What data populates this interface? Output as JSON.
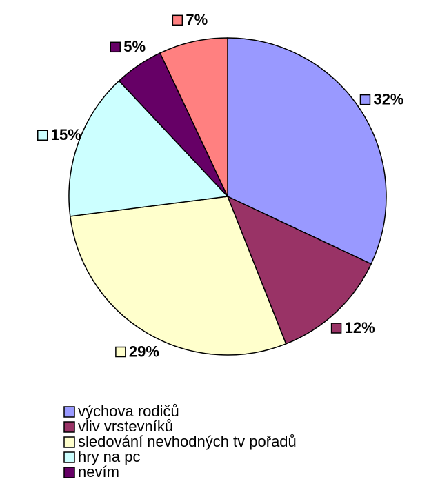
{
  "chart_data": {
    "type": "pie",
    "categories": [
      "výchova rodičů",
      "vliv vrstevníků",
      "sledování nevhodných tv pořadů",
      "hry na pc",
      "nevím",
      null
    ],
    "values": [
      32,
      12,
      29,
      15,
      5,
      7
    ],
    "value_labels": [
      "32%",
      "12%",
      "29%",
      "15%",
      "5%",
      "7%"
    ],
    "colors": [
      "#9999ff",
      "#993366",
      "#ffffcc",
      "#ccffff",
      "#660066",
      "#ff8080"
    ],
    "legend": "bottom"
  }
}
